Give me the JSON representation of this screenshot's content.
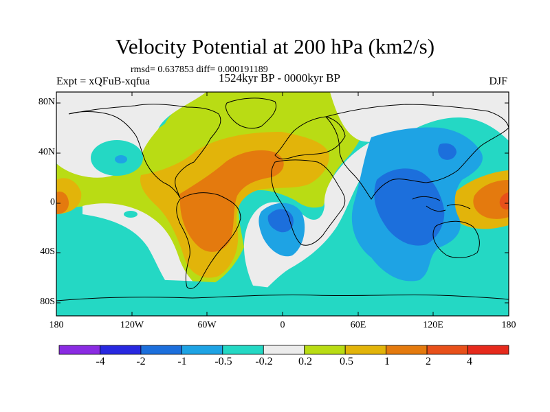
{
  "title": "Velocity Potential at 200 hPa (km2/s)",
  "stats": "rmsd= 0.637853 diff= 0.000191189",
  "experiment": "Expt = xQFuB-xqfua",
  "period": "1524kyr BP - 0000kyr BP",
  "season": "DJF",
  "lat_labels": [
    "80N",
    "40N",
    "0",
    "40S",
    "80S"
  ],
  "lon_labels": [
    "180",
    "120W",
    "60W",
    "0",
    "60E",
    "120E",
    "180"
  ],
  "colorbar": {
    "labels": [
      "-4",
      "-2",
      "-1",
      "-0.5",
      "-0.2",
      "0.2",
      "0.5",
      "1",
      "2",
      "4"
    ],
    "colors": [
      "#8a2be2",
      "#2828e0",
      "#1c6fdc",
      "#1ea3e4",
      "#24d8c4",
      "#ececec",
      "#b9dc14",
      "#e2b40a",
      "#e47a0e",
      "#e8501a",
      "#e62a1c"
    ]
  },
  "regions": [
    {
      "name": "Atlantic and Africa positive anomaly",
      "level": "0.5 to 1",
      "color": "#e2b40a"
    },
    {
      "name": "South America core",
      "level": "1 to 2",
      "color": "#e47a0e"
    },
    {
      "name": "Indian Ocean and Maritime Continent",
      "level": "-1 to -0.5",
      "color": "#1ea3e4"
    },
    {
      "name": "Indian Ocean core",
      "level": "-2 to -1",
      "color": "#1c6fdc"
    },
    {
      "name": "Central Pacific positive anomaly",
      "level": "1 to 2",
      "color": "#e47a0e"
    },
    {
      "name": "Southern Ocean",
      "level": "-0.5 to -0.2",
      "color": "#24d8c4"
    }
  ]
}
